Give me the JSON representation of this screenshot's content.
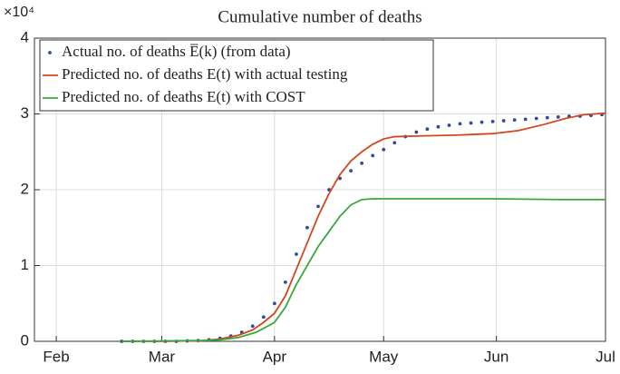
{
  "chart_data": {
    "type": "line",
    "title": "Cumulative number of deaths",
    "y_exponent": "×10⁴",
    "xlim": [
      -6,
      151
    ],
    "xticks": [
      {
        "value": 0,
        "label": "Feb"
      },
      {
        "value": 29,
        "label": "Mar"
      },
      {
        "value": 60,
        "label": "Apr"
      },
      {
        "value": 90,
        "label": "May"
      },
      {
        "value": 121,
        "label": "Jun"
      },
      {
        "value": 151,
        "label": "Jul"
      }
    ],
    "ylim": [
      0,
      4
    ],
    "yticks": [
      0,
      1,
      2,
      3,
      4
    ],
    "grid": true,
    "legend": "upper left",
    "series": [
      {
        "name": "Actual no. of deaths E̅(k) (from data)",
        "color": "#2e4a9a",
        "style": "dots",
        "x": [
          18,
          21,
          24,
          27,
          30,
          33,
          36,
          39,
          42,
          45,
          48,
          51,
          54,
          57,
          60,
          63,
          66,
          69,
          72,
          75,
          78,
          81,
          84,
          87,
          90,
          93,
          96,
          99,
          102,
          105,
          108,
          111,
          114,
          117,
          120,
          123,
          126,
          129,
          132,
          135,
          138,
          141,
          144,
          147,
          150
        ],
        "values": [
          0,
          0,
          0,
          0,
          0,
          0,
          0.005,
          0.01,
          0.02,
          0.04,
          0.07,
          0.12,
          0.2,
          0.32,
          0.5,
          0.78,
          1.15,
          1.5,
          1.78,
          2.0,
          2.15,
          2.25,
          2.35,
          2.45,
          2.53,
          2.62,
          2.7,
          2.76,
          2.8,
          2.83,
          2.85,
          2.87,
          2.88,
          2.89,
          2.9,
          2.91,
          2.92,
          2.93,
          2.94,
          2.95,
          2.96,
          2.97,
          2.97,
          2.98,
          2.99
        ]
      },
      {
        "name": "Predicted no. of deaths E(t) with actual testing",
        "color": "#d4461c",
        "style": "line",
        "x": [
          18,
          30,
          40,
          45,
          50,
          54,
          57,
          60,
          63,
          66,
          69,
          72,
          75,
          78,
          81,
          84,
          87,
          90,
          93,
          100,
          110,
          120,
          127,
          134,
          140,
          145,
          151
        ],
        "values": [
          0,
          0,
          0.01,
          0.03,
          0.08,
          0.15,
          0.25,
          0.37,
          0.6,
          0.95,
          1.3,
          1.65,
          1.95,
          2.2,
          2.38,
          2.5,
          2.6,
          2.67,
          2.7,
          2.71,
          2.72,
          2.74,
          2.78,
          2.86,
          2.94,
          2.99,
          3.01
        ]
      },
      {
        "name": "Predicted no. of deaths E(t) with COST",
        "color": "#3aa83a",
        "style": "line",
        "x": [
          18,
          40,
          45,
          50,
          55,
          60,
          63,
          66,
          69,
          72,
          75,
          78,
          81,
          84,
          87,
          100,
          120,
          140,
          151
        ],
        "values": [
          0,
          0.01,
          0.02,
          0.05,
          0.12,
          0.25,
          0.45,
          0.75,
          1.0,
          1.25,
          1.45,
          1.65,
          1.8,
          1.87,
          1.88,
          1.88,
          1.88,
          1.87,
          1.87
        ]
      }
    ]
  }
}
